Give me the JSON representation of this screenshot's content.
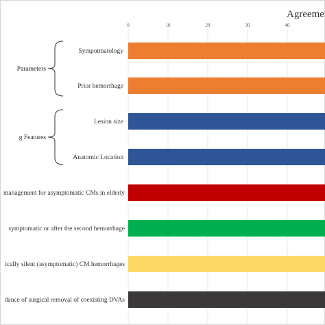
{
  "chart_data": {
    "type": "bar",
    "orientation": "horizontal",
    "title": "Agreeme",
    "xlim": [
      0,
      50
    ],
    "x_ticks": [
      "0",
      "10",
      "20",
      "30",
      "40"
    ],
    "grid": true,
    "groups": [
      {
        "label": "Parameters",
        "members": [
          "Sympotmatology",
          "Prior hemorrhage"
        ]
      },
      {
        "label": "g Features",
        "members": [
          "Lesion size",
          "Anatomic Location"
        ]
      }
    ],
    "categories": [
      "Sympotmatology",
      "Prior hemorrhage",
      "Lesion size",
      "Anatomic Location",
      "management for asymptomatic CMs in elderly",
      "symptomatic or after the second hemorrhage",
      "ically silent (asymptomatic) CM hemorrhages",
      "dance of surgical removal of coexisting DVAs"
    ],
    "values": [
      50,
      50,
      50,
      50,
      50,
      50,
      50,
      50
    ],
    "colors": [
      "#ED7D31",
      "#ED7D31",
      "#2F5597",
      "#2F5597",
      "#C00000",
      "#00B050",
      "#FFD966",
      "#3A3838"
    ]
  }
}
